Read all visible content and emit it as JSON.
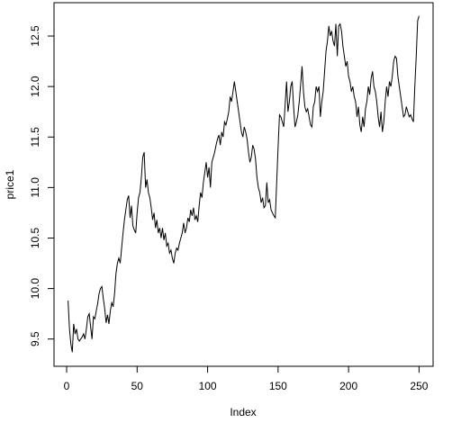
{
  "chart_data": {
    "type": "line",
    "x_label": "Index",
    "y_label": "price1",
    "x": [
      1,
      2,
      3,
      4,
      5,
      6,
      7,
      8,
      9,
      10,
      11,
      12,
      13,
      14,
      15,
      16,
      17,
      18,
      19,
      20,
      21,
      22,
      23,
      24,
      25,
      26,
      27,
      28,
      29,
      30,
      31,
      32,
      33,
      34,
      35,
      36,
      37,
      38,
      39,
      40,
      41,
      42,
      43,
      44,
      45,
      46,
      47,
      48,
      49,
      50,
      51,
      52,
      53,
      54,
      55,
      56,
      57,
      58,
      59,
      60,
      61,
      62,
      63,
      64,
      65,
      66,
      67,
      68,
      69,
      70,
      71,
      72,
      73,
      74,
      75,
      76,
      77,
      78,
      79,
      80,
      81,
      82,
      83,
      84,
      85,
      86,
      87,
      88,
      89,
      90,
      91,
      92,
      93,
      94,
      95,
      96,
      97,
      98,
      99,
      100,
      101,
      102,
      103,
      104,
      105,
      106,
      107,
      108,
      109,
      110,
      111,
      112,
      113,
      114,
      115,
      116,
      117,
      118,
      119,
      120,
      121,
      122,
      123,
      124,
      125,
      126,
      127,
      128,
      129,
      130,
      131,
      132,
      133,
      134,
      135,
      136,
      137,
      138,
      139,
      140,
      141,
      142,
      143,
      144,
      145,
      146,
      147,
      148,
      149,
      150,
      151,
      152,
      153,
      154,
      155,
      156,
      157,
      158,
      159,
      160,
      161,
      162,
      163,
      164,
      165,
      166,
      167,
      168,
      169,
      170,
      171,
      172,
      173,
      174,
      175,
      176,
      177,
      178,
      179,
      180,
      181,
      182,
      183,
      184,
      185,
      186,
      187,
      188,
      189,
      190,
      191,
      192,
      193,
      194,
      195,
      196,
      197,
      198,
      199,
      200,
      201,
      202,
      203,
      204,
      205,
      206,
      207,
      208,
      209,
      210,
      211,
      212,
      213,
      214,
      215,
      216,
      217,
      218,
      219,
      220,
      221,
      222,
      223,
      224,
      225,
      226,
      227,
      228,
      229,
      230,
      231,
      232,
      233,
      234,
      235,
      236,
      237,
      238,
      239,
      240,
      241,
      242,
      243,
      244,
      245,
      246,
      247,
      248,
      249,
      250
    ],
    "series": [
      {
        "color": "#000000",
        "values": [
          9.88,
          9.6,
          9.45,
          9.37,
          9.65,
          9.55,
          9.6,
          9.5,
          9.48,
          9.5,
          9.52,
          9.55,
          9.5,
          9.6,
          9.72,
          9.75,
          9.62,
          9.5,
          9.72,
          9.7,
          9.78,
          9.85,
          9.95,
          10.0,
          10.02,
          9.9,
          9.8,
          9.66,
          9.74,
          9.65,
          9.78,
          9.86,
          9.82,
          9.95,
          10.15,
          10.25,
          10.3,
          10.25,
          10.4,
          10.55,
          10.68,
          10.78,
          10.88,
          10.92,
          10.7,
          10.82,
          10.62,
          10.58,
          10.55,
          10.75,
          10.9,
          10.95,
          11.1,
          11.3,
          11.35,
          11.0,
          11.08,
          10.95,
          10.9,
          10.8,
          10.68,
          10.75,
          10.6,
          10.68,
          10.55,
          10.6,
          10.5,
          10.6,
          10.48,
          10.55,
          10.42,
          10.45,
          10.35,
          10.38,
          10.3,
          10.25,
          10.35,
          10.4,
          10.38,
          10.45,
          10.5,
          10.55,
          10.65,
          10.55,
          10.6,
          10.7,
          10.66,
          10.78,
          10.72,
          10.8,
          10.68,
          10.72,
          10.66,
          10.82,
          10.95,
          10.9,
          11.05,
          11.15,
          11.25,
          11.1,
          11.2,
          11.0,
          11.25,
          11.3,
          11.35,
          11.42,
          11.48,
          11.52,
          11.42,
          11.55,
          11.5,
          11.65,
          11.62,
          11.68,
          11.75,
          11.9,
          11.85,
          11.95,
          12.05,
          11.95,
          11.85,
          11.75,
          11.65,
          11.55,
          11.5,
          11.6,
          11.55,
          11.48,
          11.35,
          11.25,
          11.3,
          11.42,
          11.38,
          11.28,
          11.1,
          11.0,
          10.95,
          10.85,
          10.9,
          10.8,
          10.82,
          11.05,
          10.85,
          10.88,
          10.78,
          10.75,
          10.72,
          10.7,
          11.05,
          11.4,
          11.72,
          11.7,
          11.65,
          11.6,
          11.82,
          12.05,
          11.75,
          11.85,
          12.0,
          12.05,
          11.8,
          11.6,
          11.65,
          11.72,
          11.85,
          12.02,
          12.2,
          11.95,
          11.8,
          11.75,
          11.78,
          11.7,
          11.62,
          11.6,
          11.8,
          11.85,
          12.0,
          11.95,
          12.0,
          11.7,
          11.85,
          11.95,
          12.15,
          12.35,
          12.45,
          12.6,
          12.5,
          12.55,
          12.45,
          12.4,
          12.62,
          12.3,
          12.6,
          12.62,
          12.55,
          12.4,
          12.3,
          12.2,
          12.25,
          12.1,
          12.05,
          11.95,
          12.0,
          11.9,
          11.85,
          11.7,
          11.8,
          11.62,
          11.55,
          11.7,
          11.6,
          11.78,
          11.85,
          12.0,
          11.92,
          12.08,
          12.15,
          12.0,
          11.95,
          11.85,
          11.7,
          11.6,
          11.75,
          11.55,
          11.65,
          11.85,
          12.0,
          11.9,
          12.05,
          12.0,
          12.1,
          12.25,
          12.3,
          12.28,
          12.1,
          12.0,
          11.9,
          11.8,
          11.7,
          11.72,
          11.8,
          11.75,
          11.7,
          11.72,
          11.68,
          11.65,
          12.0,
          12.3,
          12.65,
          12.7
        ]
      }
    ],
    "xlim": [
      -8.96,
      259.96
    ],
    "ylim": [
      9.23,
      12.83
    ],
    "xticks": [
      0,
      50,
      100,
      150,
      200,
      250
    ],
    "yticks": [
      9.5,
      {
        "value": 10,
        "label": "10.0"
      },
      10.5,
      {
        "value": 11,
        "label": "11.0"
      },
      11.5,
      {
        "value": 12,
        "label": "12.0"
      },
      12.5
    ]
  }
}
